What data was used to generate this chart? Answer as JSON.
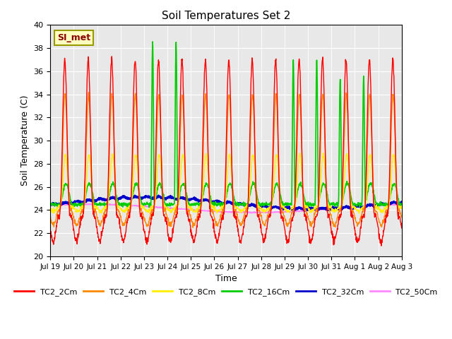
{
  "title": "Soil Temperatures Set 2",
  "xlabel": "Time",
  "ylabel": "Soil Temperature (C)",
  "ylim": [
    20,
    40
  ],
  "yticks": [
    20,
    22,
    24,
    26,
    28,
    30,
    32,
    34,
    36,
    38,
    40
  ],
  "annotation": "SI_met",
  "bg_color": "#e8e8e8",
  "series_colors": {
    "TC2_2Cm": "#ff0000",
    "TC2_4Cm": "#ff8800",
    "TC2_8Cm": "#ffee00",
    "TC2_16Cm": "#00cc00",
    "TC2_32Cm": "#0000cc",
    "TC2_50Cm": "#ff88ff"
  },
  "series_widths": {
    "TC2_2Cm": 1.0,
    "TC2_4Cm": 1.0,
    "TC2_8Cm": 1.0,
    "TC2_16Cm": 1.2,
    "TC2_32Cm": 2.0,
    "TC2_50Cm": 1.2
  },
  "x_tick_labels": [
    "Jul 19",
    "Jul 20",
    "Jul 21",
    "Jul 22",
    "Jul 23",
    "Jul 24",
    "Jul 25",
    "Jul 26",
    "Jul 27",
    "Jul 28",
    "Jul 29",
    "Jul 30",
    "Jul 31",
    "Aug 1",
    "Aug 2",
    "Aug 3"
  ],
  "n_points": 1440
}
